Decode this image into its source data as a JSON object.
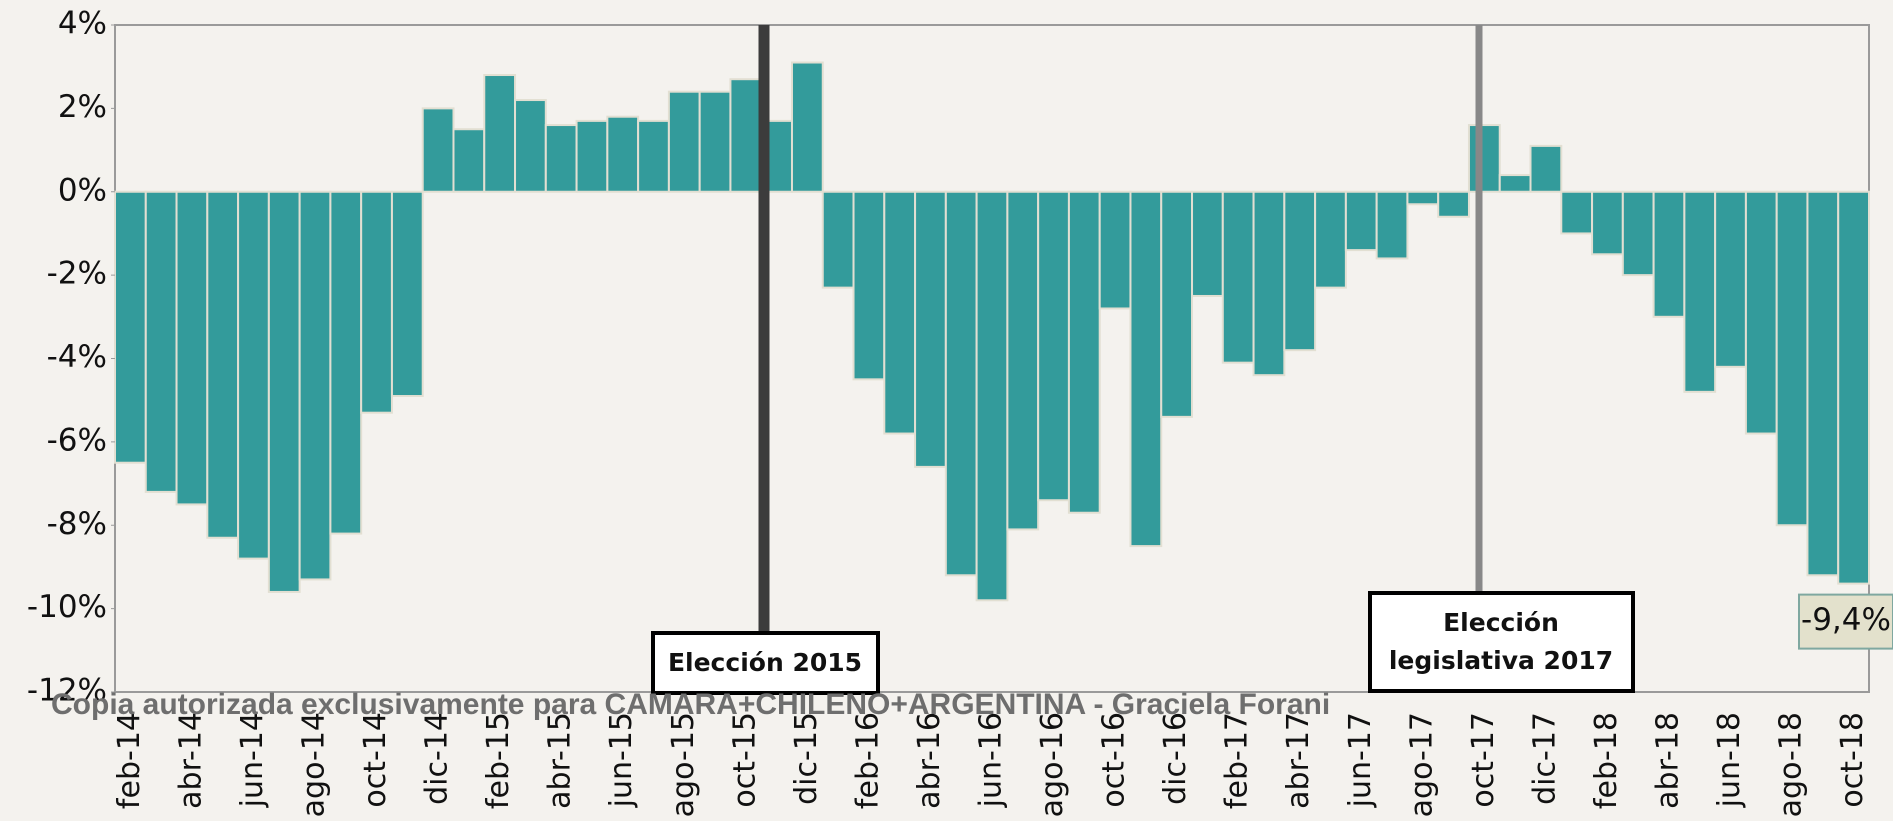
{
  "chart_data": {
    "type": "bar",
    "categories": [
      "feb-14",
      null,
      "abr-14",
      null,
      "jun-14",
      null,
      "ago-14",
      null,
      "oct-14",
      null,
      "dic-14",
      null,
      "feb-15",
      null,
      "abr-15",
      null,
      "jun-15",
      null,
      "ago-15",
      null,
      "oct-15",
      null,
      "dic-15",
      null,
      "feb-16",
      null,
      "abr-16",
      null,
      "jun-16",
      null,
      "ago-16",
      null,
      "oct-16",
      null,
      "dic-16",
      null,
      "feb-17",
      null,
      "abr-17",
      null,
      "jun-17",
      null,
      "ago-17",
      null,
      "oct-17",
      null,
      "dic-17",
      null,
      "feb-18",
      null,
      "abr-18",
      null,
      "jun-18",
      null,
      "ago-18",
      null,
      "oct-18"
    ],
    "values": [
      -6.5,
      -7.2,
      -7.5,
      -8.3,
      -8.8,
      -9.6,
      -9.3,
      -8.2,
      -5.3,
      -4.9,
      2.0,
      1.5,
      2.8,
      2.2,
      1.6,
      1.7,
      1.8,
      1.7,
      2.4,
      2.4,
      2.7,
      1.7,
      3.1,
      -2.3,
      -4.5,
      -5.8,
      -6.6,
      -9.2,
      -9.8,
      -8.1,
      -7.4,
      -7.7,
      -2.8,
      -8.5,
      -5.4,
      -2.5,
      -4.1,
      -4.4,
      -3.8,
      -2.3,
      -1.4,
      -1.6,
      -0.3,
      -0.6,
      1.6,
      0.4,
      1.1,
      -1.0,
      -1.5,
      -2.0,
      -3.0,
      -4.8,
      -4.2,
      -5.8,
      -8.0,
      -9.2,
      -9.4
    ],
    "value_labels": [
      null,
      null,
      null,
      null,
      null,
      null,
      null,
      null,
      null,
      null,
      null,
      null,
      null,
      null,
      null,
      null,
      null,
      null,
      null,
      null,
      null,
      null,
      null,
      null,
      null,
      null,
      null,
      null,
      null,
      null,
      null,
      null,
      null,
      null,
      null,
      null,
      null,
      null,
      null,
      null,
      null,
      null,
      null,
      null,
      null,
      null,
      null,
      null,
      null,
      null,
      null,
      null,
      null,
      null,
      null,
      null,
      "-9,4%"
    ],
    "color": "#339b9b",
    "ylim": [
      -12,
      4
    ],
    "yticks": [
      {
        "value": -12,
        "label": "-12%"
      },
      {
        "value": -10,
        "label": "-10%"
      },
      {
        "value": -8,
        "label": "-8%"
      },
      {
        "value": -6,
        "label": "-6%"
      },
      {
        "value": -4,
        "label": "-4%"
      },
      {
        "value": -2,
        "label": "-2%"
      },
      {
        "value": 0,
        "label": "0%"
      },
      {
        "value": 2,
        "label": "2%"
      },
      {
        "value": 4,
        "label": "4%"
      }
    ],
    "grid": false,
    "annotations": [
      "Elección 2015",
      "Elección",
      "legislativa 2017"
    ],
    "watermark": "Copia autorizada exclusivamente para CAMARA+CHILENO+ARGENTINA - Graciela Forani"
  }
}
